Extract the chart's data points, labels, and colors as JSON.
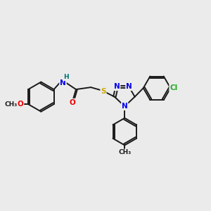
{
  "bg_color": "#ebebeb",
  "bond_color": "#1a1a1a",
  "atom_colors": {
    "N": "#0000ee",
    "O": "#ee0000",
    "S": "#ccaa00",
    "Cl": "#22aa22",
    "C": "#1a1a1a",
    "H": "#007070"
  },
  "bond_lw": 1.4,
  "dbl_sep": 0.09
}
